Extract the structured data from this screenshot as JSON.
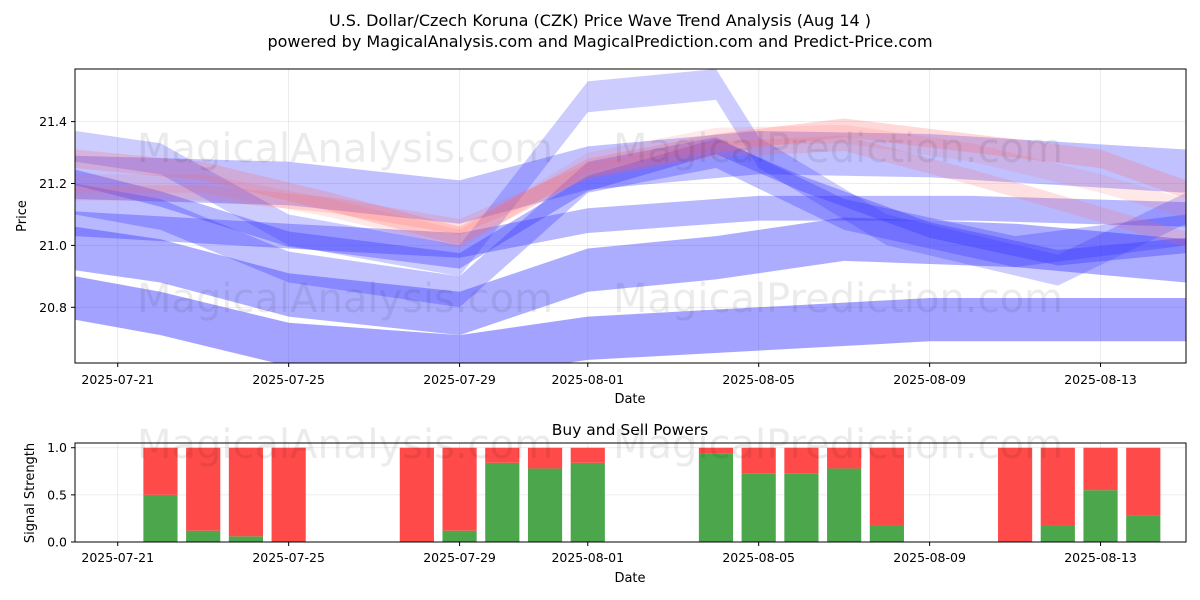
{
  "title_line1": "U.S. Dollar/Czech Koruna (CZK) Price Wave Trend Analysis (Aug 14 )",
  "title_line2": "powered by MagicalAnalysis.com and MagicalPrediction.com and Predict-Price.com",
  "watermarks": [
    "MagicalAnalysis.com",
    "MagicalPrediction.com"
  ],
  "colors": {
    "buy": "#4ca64c",
    "sell": "#ff4a4a",
    "blue_band": "#3333ff",
    "red_band": "#ff6666"
  },
  "chart_data": [
    {
      "type": "area",
      "title": "",
      "xlabel": "Date",
      "ylabel": "Price",
      "xlim": [
        "2025-07-20",
        "2025-08-15"
      ],
      "ylim": [
        20.62,
        21.57
      ],
      "yticks": [
        20.8,
        21.0,
        21.2,
        21.4
      ],
      "ytick_labels": [
        "20.8",
        "21.0",
        "21.2",
        "21.4"
      ],
      "xticks": [
        "2025-07-21",
        "2025-07-25",
        "2025-07-29",
        "2025-08-01",
        "2025-08-05",
        "2025-08-09",
        "2025-08-13"
      ],
      "grid": true,
      "series": [
        {
          "name": "blue-band-1",
          "color": "blue",
          "alpha": 0.35,
          "width": 0.08,
          "points": [
            [
              "2025-07-20",
              21.07
            ],
            [
              "2025-07-25",
              21.03
            ],
            [
              "2025-07-29",
              21.0
            ],
            [
              "2025-08-01",
              21.08
            ],
            [
              "2025-08-05",
              21.12
            ],
            [
              "2025-08-10",
              21.12
            ],
            [
              "2025-08-15",
              21.1
            ]
          ]
        },
        {
          "name": "blue-band-2",
          "color": "blue",
          "alpha": 0.3,
          "width": 0.1,
          "points": [
            [
              "2025-07-20",
              21.15
            ],
            [
              "2025-07-22",
              21.1
            ],
            [
              "2025-07-25",
              20.93
            ],
            [
              "2025-07-29",
              20.85
            ],
            [
              "2025-08-01",
              21.22
            ],
            [
              "2025-08-04",
              21.3
            ],
            [
              "2025-08-07",
              21.1
            ],
            [
              "2025-08-11",
              20.98
            ],
            [
              "2025-08-15",
              21.05
            ]
          ]
        },
        {
          "name": "blue-band-3",
          "color": "blue",
          "alpha": 0.25,
          "width": 0.1,
          "points": [
            [
              "2025-07-20",
              21.32
            ],
            [
              "2025-07-22",
              21.28
            ],
            [
              "2025-07-25",
              21.05
            ],
            [
              "2025-07-29",
              20.95
            ],
            [
              "2025-08-01",
              21.48
            ],
            [
              "2025-08-04",
              21.52
            ],
            [
              "2025-08-05",
              21.3
            ],
            [
              "2025-08-08",
              21.05
            ],
            [
              "2025-08-12",
              20.92
            ],
            [
              "2025-08-15",
              21.12
            ]
          ]
        },
        {
          "name": "blue-band-4",
          "color": "blue",
          "alpha": 0.3,
          "width": 0.14,
          "points": [
            [
              "2025-07-20",
              21.22
            ],
            [
              "2025-07-25",
              21.2
            ],
            [
              "2025-07-29",
              21.14
            ],
            [
              "2025-08-01",
              21.25
            ],
            [
              "2025-08-05",
              21.3
            ],
            [
              "2025-08-09",
              21.29
            ],
            [
              "2025-08-15",
              21.24
            ]
          ]
        },
        {
          "name": "blue-band-5",
          "color": "blue",
          "alpha": 0.4,
          "width": 0.14,
          "points": [
            [
              "2025-07-20",
              20.99
            ],
            [
              "2025-07-22",
              20.95
            ],
            [
              "2025-07-25",
              20.84
            ],
            [
              "2025-07-29",
              20.78
            ],
            [
              "2025-08-01",
              20.92
            ],
            [
              "2025-08-04",
              20.96
            ],
            [
              "2025-08-07",
              21.02
            ],
            [
              "2025-08-11",
              21.0
            ],
            [
              "2025-08-15",
              20.95
            ]
          ]
        },
        {
          "name": "blue-band-6",
          "color": "blue",
          "alpha": 0.45,
          "width": 0.14,
          "points": [
            [
              "2025-07-20",
              20.83
            ],
            [
              "2025-07-22",
              20.78
            ],
            [
              "2025-07-25",
              20.68
            ],
            [
              "2025-07-29",
              20.64
            ],
            [
              "2025-08-01",
              20.7
            ],
            [
              "2025-08-05",
              20.73
            ],
            [
              "2025-08-09",
              20.76
            ],
            [
              "2025-08-15",
              20.76
            ]
          ]
        },
        {
          "name": "blue-band-7",
          "color": "blue",
          "alpha": 0.35,
          "width": 0.05,
          "points": [
            [
              "2025-07-20",
              21.22
            ],
            [
              "2025-07-22",
              21.15
            ],
            [
              "2025-07-25",
              21.02
            ],
            [
              "2025-07-29",
              20.95
            ],
            [
              "2025-08-01",
              21.2
            ],
            [
              "2025-08-04",
              21.32
            ],
            [
              "2025-08-06",
              21.2
            ],
            [
              "2025-08-09",
              21.05
            ],
            [
              "2025-08-12",
              20.96
            ],
            [
              "2025-08-15",
              21.0
            ]
          ]
        },
        {
          "name": "red-band-1",
          "color": "red",
          "alpha": 0.25,
          "width": 0.06,
          "points": [
            [
              "2025-07-20",
              21.28
            ],
            [
              "2025-07-23",
              21.24
            ],
            [
              "2025-07-26",
              21.14
            ],
            [
              "2025-07-29",
              21.03
            ],
            [
              "2025-08-01",
              21.25
            ],
            [
              "2025-08-04",
              21.33
            ],
            [
              "2025-08-07",
              21.38
            ],
            [
              "2025-08-10",
              21.33
            ],
            [
              "2025-08-13",
              21.28
            ],
            [
              "2025-08-15",
              21.18
            ]
          ]
        },
        {
          "name": "red-band-2",
          "color": "red",
          "alpha": 0.2,
          "width": 0.05,
          "points": [
            [
              "2025-07-20",
              21.17
            ],
            [
              "2025-07-23",
              21.17
            ],
            [
              "2025-07-26",
              21.13
            ],
            [
              "2025-07-29",
              21.06
            ],
            [
              "2025-08-01",
              21.24
            ],
            [
              "2025-08-04",
              21.31
            ],
            [
              "2025-08-07",
              21.33
            ],
            [
              "2025-08-10",
              21.22
            ],
            [
              "2025-08-13",
              21.1
            ],
            [
              "2025-08-15",
              21.02
            ]
          ]
        },
        {
          "name": "red-band-3",
          "color": "red",
          "alpha": 0.15,
          "width": 0.06,
          "points": [
            [
              "2025-07-20",
              21.2
            ],
            [
              "2025-07-23",
              21.2
            ],
            [
              "2025-07-26",
              21.12
            ],
            [
              "2025-07-29",
              21.02
            ],
            [
              "2025-08-01",
              21.27
            ],
            [
              "2025-08-04",
              21.35
            ],
            [
              "2025-08-07",
              21.36
            ],
            [
              "2025-08-10",
              21.3
            ],
            [
              "2025-08-13",
              21.2
            ],
            [
              "2025-08-15",
              21.12
            ]
          ]
        }
      ]
    },
    {
      "type": "bar",
      "title": "Buy and Sell Powers",
      "xlabel": "Date",
      "ylabel": "Signal Strength",
      "xlim": [
        "2025-07-20",
        "2025-08-15"
      ],
      "ylim": [
        0,
        1.05
      ],
      "yticks": [
        0.0,
        0.5,
        1.0
      ],
      "ytick_labels": [
        "0.0",
        "0.5",
        "1.0"
      ],
      "xticks": [
        "2025-07-21",
        "2025-07-25",
        "2025-07-29",
        "2025-08-01",
        "2025-08-05",
        "2025-08-09",
        "2025-08-13"
      ],
      "grid": true,
      "series": [
        {
          "name": "Buy",
          "color": "green"
        },
        {
          "name": "Sell",
          "color": "red"
        }
      ],
      "bars": [
        {
          "date": "2025-07-22",
          "buy": 0.5,
          "sell": 0.5
        },
        {
          "date": "2025-07-23",
          "buy": 0.12,
          "sell": 0.88
        },
        {
          "date": "2025-07-24",
          "buy": 0.06,
          "sell": 0.94
        },
        {
          "date": "2025-07-25",
          "buy": 0.0,
          "sell": 1.0
        },
        {
          "date": "2025-07-28",
          "buy": 0.0,
          "sell": 1.0
        },
        {
          "date": "2025-07-29",
          "buy": 0.12,
          "sell": 0.88
        },
        {
          "date": "2025-07-30",
          "buy": 0.84,
          "sell": 0.16
        },
        {
          "date": "2025-07-31",
          "buy": 0.78,
          "sell": 0.22
        },
        {
          "date": "2025-08-01",
          "buy": 0.84,
          "sell": 0.16
        },
        {
          "date": "2025-08-04",
          "buy": 0.94,
          "sell": 0.06
        },
        {
          "date": "2025-08-05",
          "buy": 0.73,
          "sell": 0.27
        },
        {
          "date": "2025-08-06",
          "buy": 0.73,
          "sell": 0.27
        },
        {
          "date": "2025-08-07",
          "buy": 0.78,
          "sell": 0.22
        },
        {
          "date": "2025-08-08",
          "buy": 0.17,
          "sell": 0.83
        },
        {
          "date": "2025-08-11",
          "buy": 0.0,
          "sell": 1.0
        },
        {
          "date": "2025-08-12",
          "buy": 0.17,
          "sell": 0.83
        },
        {
          "date": "2025-08-13",
          "buy": 0.55,
          "sell": 0.45
        },
        {
          "date": "2025-08-14",
          "buy": 0.28,
          "sell": 0.72
        }
      ]
    }
  ]
}
